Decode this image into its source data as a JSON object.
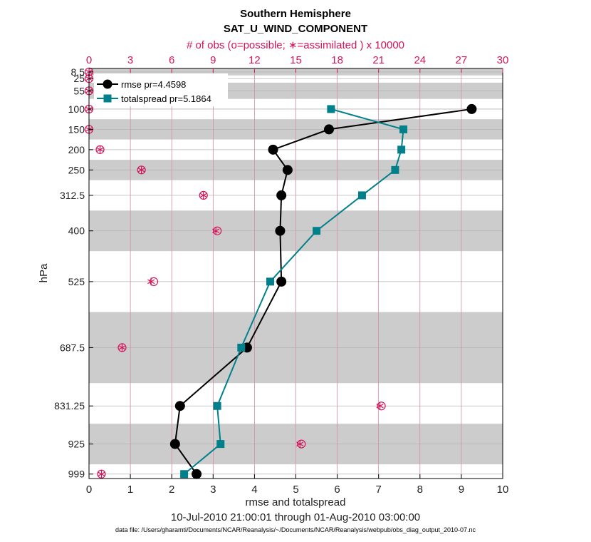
{
  "chart_data": {
    "type": "line",
    "title": "Southern Hemisphere",
    "subtitle": "SAT_U_WIND_COMPONENT",
    "top_axis_label": "# of obs (o=possible; ∗=assimilated ) x 10000",
    "xlabel": "rmse and totalspread",
    "ylabel": "hPa",
    "date_range": "10-Jul-2010 21:00:01 through 01-Aug-2010 03:00:00",
    "footnote": "data file: /Users/gharamti/Documents/NCAR/Reanalysis/~/Documents/NCAR/Reanalysis/webpub/obs_diag_output_2010-07.nc",
    "xlim": [
      0,
      10
    ],
    "x_ticks": [
      "0",
      "1",
      "2",
      "3",
      "4",
      "5",
      "6",
      "7",
      "8",
      "9",
      "10"
    ],
    "top_xlim": [
      0,
      30
    ],
    "top_ticks": [
      "0",
      "3",
      "6",
      "9",
      "12",
      "15",
      "18",
      "21",
      "24",
      "27",
      "30"
    ],
    "levels": [
      8.5,
      25,
      55,
      100,
      150,
      200,
      250,
      312.5,
      400,
      525,
      687.5,
      831.25,
      925,
      999
    ],
    "level_labels": [
      "8.5",
      "25",
      "55",
      "100",
      "150",
      "200",
      "250",
      "312.5",
      "400",
      "525",
      "687.5",
      "831.25",
      "925",
      "999"
    ],
    "shaded_bands_hPa": [
      [
        0,
        17
      ],
      [
        35,
        75
      ],
      [
        125,
        175
      ],
      [
        225,
        275
      ],
      [
        350,
        450
      ],
      [
        600,
        775
      ],
      [
        875,
        975
      ]
    ],
    "series": [
      {
        "name": "rmse",
        "legend": "rmse pr=4.4598",
        "color": "#000000",
        "marker": "circle",
        "points": [
          {
            "level": 100,
            "value": 9.25
          },
          {
            "level": 150,
            "value": 5.8
          },
          {
            "level": 200,
            "value": 4.45
          },
          {
            "level": 250,
            "value": 4.8
          },
          {
            "level": 312.5,
            "value": 4.65
          },
          {
            "level": 400,
            "value": 4.62
          },
          {
            "level": 525,
            "value": 4.65
          },
          {
            "level": 687.5,
            "value": 3.82
          },
          {
            "level": 831.25,
            "value": 2.2
          },
          {
            "level": 925,
            "value": 2.08
          },
          {
            "level": 999,
            "value": 2.6
          }
        ]
      },
      {
        "name": "totalspread",
        "legend": "totalspread pr=5.1864",
        "color": "#00808a",
        "marker": "square",
        "points": [
          {
            "level": 100,
            "value": 5.85
          },
          {
            "level": 150,
            "value": 7.6
          },
          {
            "level": 200,
            "value": 7.55
          },
          {
            "level": 250,
            "value": 7.4
          },
          {
            "level": 312.5,
            "value": 6.6
          },
          {
            "level": 400,
            "value": 5.5
          },
          {
            "level": 525,
            "value": 4.38
          },
          {
            "level": 687.5,
            "value": 3.68
          },
          {
            "level": 831.25,
            "value": 3.1
          },
          {
            "level": 925,
            "value": 3.18
          },
          {
            "level": 999,
            "value": 2.3
          }
        ]
      }
    ],
    "obs_counts": {
      "unit": "x 10000",
      "color": "#d4145a",
      "points": [
        {
          "level": 8.5,
          "possible": 0.0,
          "assimilated": 0.0
        },
        {
          "level": 25,
          "possible": 0.0,
          "assimilated": 0.0
        },
        {
          "level": 55,
          "possible": 0.0,
          "assimilated": 0.0
        },
        {
          "level": 100,
          "possible": 0.0,
          "assimilated": 0.0
        },
        {
          "level": 150,
          "possible": 0.0,
          "assimilated": 0.0
        },
        {
          "level": 200,
          "possible": 0.8,
          "assimilated": 0.8
        },
        {
          "level": 250,
          "possible": 3.8,
          "assimilated": 3.8
        },
        {
          "level": 312.5,
          "possible": 8.3,
          "assimilated": 8.3
        },
        {
          "level": 400,
          "possible": 9.3,
          "assimilated": 9.2
        },
        {
          "level": 525,
          "possible": 4.7,
          "assimilated": 4.5
        },
        {
          "level": 687.5,
          "possible": 2.4,
          "assimilated": 2.4
        },
        {
          "level": 831.25,
          "possible": 21.2,
          "assimilated": 21.1
        },
        {
          "level": 925,
          "possible": 15.4,
          "assimilated": 15.3
        },
        {
          "level": 999,
          "possible": 0.9,
          "assimilated": 0.9
        }
      ]
    }
  }
}
